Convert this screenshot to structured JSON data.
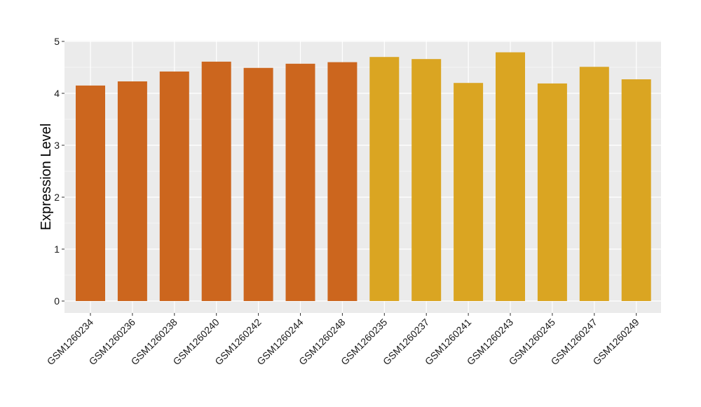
{
  "chart_data": {
    "type": "bar",
    "title": "",
    "xlabel": "",
    "ylabel": "Expression Level",
    "ylim": [
      0,
      5
    ],
    "yticks": [
      0,
      1,
      2,
      3,
      4,
      5
    ],
    "grid": true,
    "legend": "none",
    "categories": [
      "GSM1260234",
      "GSM1260236",
      "GSM1260238",
      "GSM1260240",
      "GSM1260242",
      "GSM1260244",
      "GSM1260248",
      "GSM1260235",
      "GSM1260237",
      "GSM1260241",
      "GSM1260243",
      "GSM1260245",
      "GSM1260247",
      "GSM1260249"
    ],
    "values": [
      4.15,
      4.23,
      4.42,
      4.61,
      4.49,
      4.57,
      4.6,
      4.7,
      4.66,
      4.2,
      4.79,
      4.19,
      4.51,
      4.27
    ],
    "group": [
      0,
      0,
      0,
      0,
      0,
      0,
      0,
      1,
      1,
      1,
      1,
      1,
      1,
      1
    ],
    "colors": [
      "#CC661E",
      "#DAA522"
    ],
    "panel_background": "#EBEBEB",
    "grid_color": "#FFFFFF"
  }
}
